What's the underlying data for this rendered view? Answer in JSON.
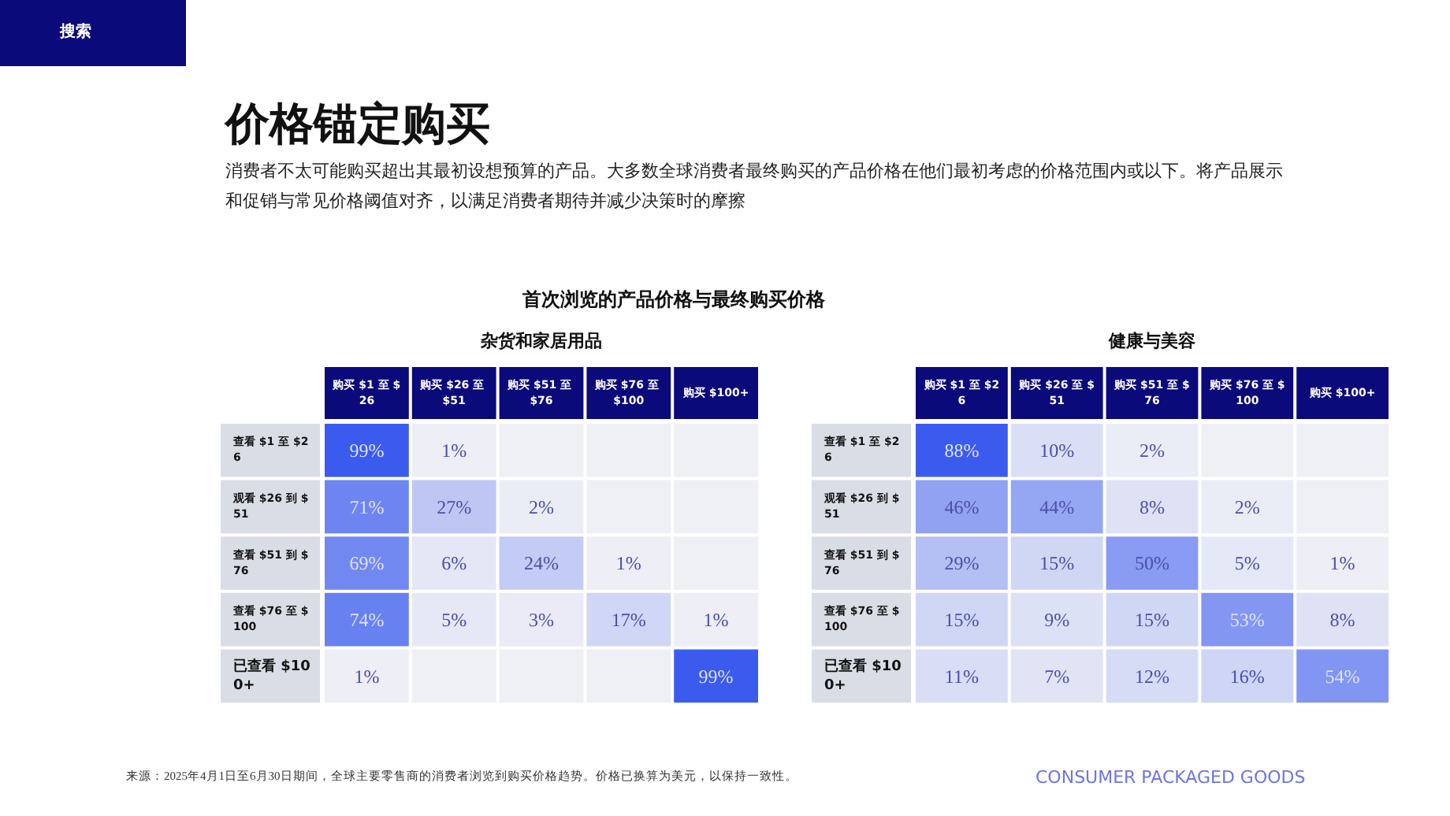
{
  "chart_data": [
    {
      "type": "heatmap",
      "title": "杂货和家居用品",
      "categories": [
        "购买 $1 至 $26",
        "购买 $26 至 $51",
        "购买 $51 至 $76",
        "购买 $76 至 $100",
        "购买 $100+"
      ],
      "y_categories": [
        "查看 $1 至 $26",
        "观看 $26 到 $51",
        "查看 $51 到 $76",
        "查看 $76 至 $100",
        "已查看 $100+"
      ],
      "cells": [
        [
          99,
          1,
          null,
          null,
          null
        ],
        [
          71,
          27,
          2,
          null,
          null
        ],
        [
          69,
          6,
          24,
          1,
          null
        ],
        [
          74,
          5,
          3,
          17,
          1
        ],
        [
          1,
          null,
          null,
          null,
          99
        ]
      ],
      "cell_labels": [
        [
          "99%",
          "1%",
          null,
          null,
          null
        ],
        [
          "71%",
          "27%",
          "2%",
          null,
          null
        ],
        [
          "69%",
          "6%",
          "24%",
          "1%",
          null
        ],
        [
          "74%",
          "5%",
          "3%",
          "17%",
          "1%"
        ],
        [
          "1%",
          null,
          null,
          null,
          "99%"
        ]
      ],
      "annotations": [
        "搜索",
        "价格锚定购买",
        "消费者不太可能购买超出其最初设想预算的产品。大多数全球消费者最终购买的产品价格在他们最初考虑的价格范围内或以下。将产品展示和促销与常见价格阈值对齐，以满足消费者期待并减少决策时的摩擦",
        "首次浏览的产品价格与最终购买价格",
        "来源：2025年4月1日至6月30日期间，全球主要零售商的消费者浏览到购买价格趋势。价格已换算为美元，以保持一致性。",
        "CONSUMER PACKAGED GOODS"
      ]
    },
    {
      "type": "heatmap",
      "title": "健康与美容",
      "categories": [
        "购买 $1 至 $26",
        "购买 $26 至 $51",
        "购买 $51 至 $76",
        "购买 $76 至 $100",
        "购买 $100+"
      ],
      "y_categories": [
        "查看 $1 至 $26",
        "观看 $26 到 $51",
        "查看 $51 到 $76",
        "查看 $76 至 $100",
        "已查看 $100+"
      ],
      "cells": [
        [
          88,
          10,
          2,
          null,
          null
        ],
        [
          46,
          44,
          8,
          2,
          null
        ],
        [
          29,
          15,
          50,
          5,
          1
        ],
        [
          15,
          9,
          15,
          53,
          8
        ],
        [
          11,
          7,
          12,
          16,
          54
        ]
      ],
      "cell_labels": [
        [
          "88%",
          "10%",
          "2%",
          null,
          null
        ],
        [
          "46%",
          "44%",
          "8%",
          "2%",
          null
        ],
        [
          "29%",
          "15%",
          "50%",
          "5%",
          "1%"
        ],
        [
          "15%",
          "9%",
          "15%",
          "53%",
          "8%"
        ],
        [
          "11%",
          "7%",
          "12%",
          "16%",
          "54%"
        ]
      ]
    }
  ]
}
